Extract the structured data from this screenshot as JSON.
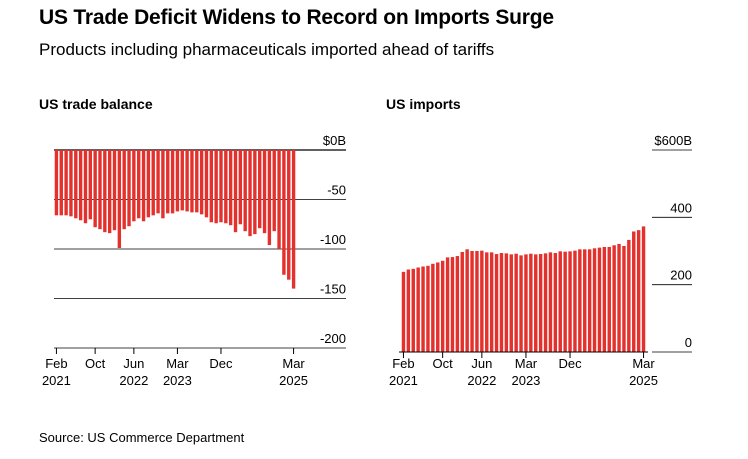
{
  "header": {
    "title": "US Trade Deficit Widens to Record on Imports Surge",
    "subtitle": "Products including pharmaceuticals imported ahead of tariffs"
  },
  "footer": {
    "source": "Source: US Commerce Department"
  },
  "colors": {
    "bar": "#e3322d",
    "axis": "#000000",
    "grid": "#000000"
  },
  "chart_data": [
    {
      "type": "bar",
      "title": "US trade balance",
      "ylim": [
        -200,
        0
      ],
      "yticks": [
        "$0B",
        "-50",
        "-100",
        "-150",
        "-200"
      ],
      "ytick_values": [
        0,
        -50,
        -100,
        -150,
        -200
      ],
      "xtick_labels": [
        {
          "line1": "Feb",
          "line2": "2021",
          "index": 0
        },
        {
          "line1": "Oct",
          "line2": "",
          "index": 8
        },
        {
          "line1": "Jun",
          "line2": "2022",
          "index": 16
        },
        {
          "line1": "Mar",
          "line2": "2023",
          "index": 25
        },
        {
          "line1": "Dec",
          "line2": "",
          "index": 34
        },
        {
          "line1": "Mar",
          "line2": "2025",
          "index": 49
        }
      ],
      "grid": true,
      "start": "Feb 2021",
      "end": "Mar 2025",
      "values": [
        -66,
        -66,
        -66,
        -67,
        -69,
        -71,
        -74,
        -70,
        -78,
        -80,
        -83,
        -84,
        -81,
        -99,
        -80,
        -77,
        -72,
        -69,
        -72,
        -68,
        -66,
        -64,
        -69,
        -64,
        -64,
        -62,
        -61,
        -62,
        -63,
        -63,
        -65,
        -68,
        -73,
        -74,
        -73,
        -74,
        -76,
        -83,
        -75,
        -82,
        -87,
        -85,
        -79,
        -84,
        -96,
        -82,
        -100,
        -126,
        -131,
        -140
      ]
    },
    {
      "type": "bar",
      "title": "US imports",
      "ylim": [
        0,
        600
      ],
      "yticks": [
        "$600B",
        "400",
        "200",
        "0"
      ],
      "ytick_values": [
        600,
        400,
        200,
        0
      ],
      "xtick_labels": [
        {
          "line1": "Feb",
          "line2": "2021",
          "index": 0
        },
        {
          "line1": "Oct",
          "line2": "",
          "index": 8
        },
        {
          "line1": "Jun",
          "line2": "2022",
          "index": 16
        },
        {
          "line1": "Mar",
          "line2": "2023",
          "index": 25
        },
        {
          "line1": "Dec",
          "line2": "",
          "index": 34
        },
        {
          "line1": "Mar",
          "line2": "2025",
          "index": 49
        }
      ],
      "grid": true,
      "start": "Feb 2021",
      "end": "Mar 2025",
      "values": [
        238,
        245,
        247,
        251,
        254,
        256,
        262,
        266,
        271,
        281,
        282,
        285,
        297,
        305,
        300,
        300,
        301,
        296,
        296,
        291,
        294,
        293,
        290,
        292,
        287,
        290,
        292,
        290,
        291,
        293,
        296,
        294,
        299,
        298,
        299,
        301,
        305,
        305,
        305,
        308,
        310,
        312,
        312,
        317,
        321,
        315,
        333,
        358,
        362,
        373
      ]
    }
  ]
}
